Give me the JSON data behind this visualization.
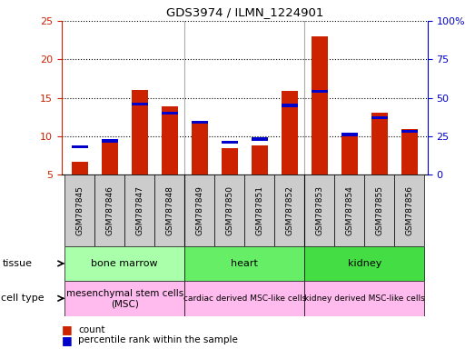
{
  "title": "GDS3974 / ILMN_1224901",
  "samples": [
    "GSM787845",
    "GSM787846",
    "GSM787847",
    "GSM787848",
    "GSM787849",
    "GSM787850",
    "GSM787851",
    "GSM787852",
    "GSM787853",
    "GSM787854",
    "GSM787855",
    "GSM787856"
  ],
  "count_values": [
    6.7,
    9.5,
    16.0,
    13.9,
    11.8,
    8.4,
    8.8,
    15.9,
    23.0,
    10.1,
    13.1,
    10.9
  ],
  "percentile_values": [
    18.0,
    22.0,
    46.0,
    40.0,
    34.0,
    21.0,
    23.0,
    45.0,
    54.0,
    26.0,
    37.0,
    28.0
  ],
  "ylim_left": [
    5,
    25
  ],
  "ylim_right": [
    0,
    100
  ],
  "yticks_left": [
    5,
    10,
    15,
    20,
    25
  ],
  "ytick_labels_left": [
    "5",
    "10",
    "15",
    "20",
    "25"
  ],
  "yticks_right": [
    0,
    25,
    50,
    75,
    100
  ],
  "ytick_labels_right": [
    "0",
    "25",
    "50",
    "75",
    "100%"
  ],
  "left_color": "#cc2200",
  "right_color": "#0000cc",
  "tissue_groups": [
    {
      "label": "bone marrow",
      "start": 0,
      "end": 3,
      "color": "#aaffaa"
    },
    {
      "label": "heart",
      "start": 4,
      "end": 7,
      "color": "#66ee66"
    },
    {
      "label": "kidney",
      "start": 8,
      "end": 11,
      "color": "#44dd44"
    }
  ],
  "cell_type_groups": [
    {
      "label": "mesenchymal stem cells\n(MSC)",
      "start": 0,
      "end": 3,
      "color": "#ffaadd"
    },
    {
      "label": "cardiac derived MSC-like cells",
      "start": 4,
      "end": 7,
      "color": "#ffaadd"
    },
    {
      "label": "kidney derived MSC-like cells",
      "start": 8,
      "end": 11,
      "color": "#ffaadd"
    }
  ],
  "sample_box_color": "#cccccc",
  "bar_width": 0.55
}
